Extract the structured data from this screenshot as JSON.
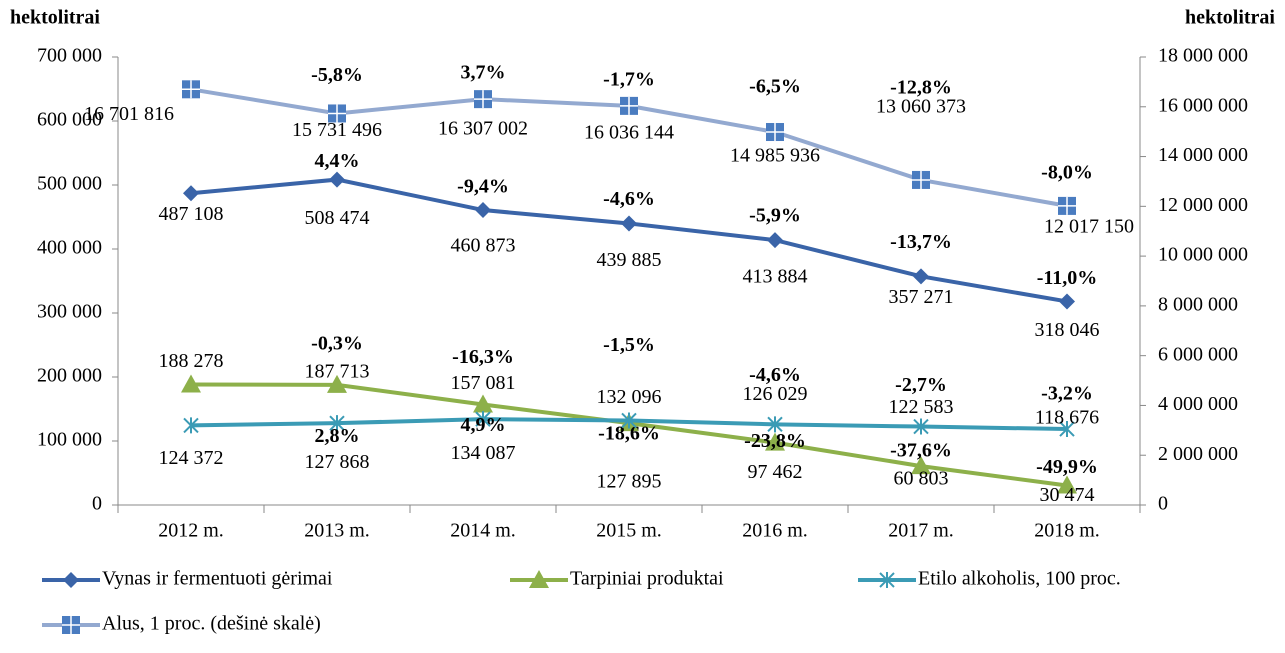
{
  "chart_data": {
    "type": "line",
    "y_label": "hektolitrai",
    "y2_label": "hektolitrai",
    "categories": [
      "2012 m.",
      "2013 m.",
      "2014 m.",
      "2015 m.",
      "2016 m.",
      "2017 m.",
      "2018 m."
    ],
    "series": [
      {
        "name": "Vynas ir fermentuoti gėrimai",
        "color": "#3a64a8",
        "marker": "diamond",
        "values": [
          487108,
          508474,
          460873,
          439885,
          413884,
          357271,
          318046
        ],
        "value_labels": [
          "487 108",
          "508 474",
          "460 873",
          "439 885",
          "413 884",
          "357 271",
          "318 046"
        ],
        "changes": [
          null,
          "4,4%",
          "-9,4%",
          "-4,6%",
          "-5,9%",
          "-13,7%",
          "-11,0%"
        ]
      },
      {
        "name": "Tarpiniai produktai",
        "color": "#8db04a",
        "marker": "triangle",
        "values": [
          188278,
          187713,
          157081,
          127895,
          97462,
          60803,
          30474
        ],
        "value_labels": [
          "188 278",
          "187 713",
          "157 081",
          "127 895",
          "97 462",
          "60 803",
          "30 474"
        ],
        "changes": [
          null,
          "-0,3%",
          "-16,3%",
          "-18,6%",
          "-23,8%",
          "-37,6%",
          "-49,9%"
        ]
      },
      {
        "name": "Etilo alkoholis, 100 proc.",
        "color": "#3b9bb5",
        "marker": "asterisk",
        "values": [
          124372,
          127868,
          134087,
          132096,
          126029,
          122583,
          118676
        ],
        "value_labels": [
          "124 372",
          "127 868",
          "134 087",
          "132 096",
          "126 029",
          "122 583",
          "118 676"
        ],
        "changes": [
          null,
          "2,8%",
          "4,9%",
          "-1,5%",
          "-4,6%",
          "-2,7%",
          "-3,2%"
        ]
      },
      {
        "name": "Alus, 1 proc. (dešinė skalė)",
        "color": "#93a9d0",
        "marker": "square",
        "axis": "y2",
        "values": [
          16701816,
          15731496,
          16307002,
          16036144,
          14985936,
          13060373,
          12017150
        ],
        "value_labels": [
          "16 701 816",
          "15 731 496",
          "16 307 002",
          "16 036 144",
          "14 985 936",
          "13 060 373",
          "12 017 150"
        ],
        "changes": [
          null,
          "-5,8%",
          "3,7%",
          "-1,7%",
          "-6,5%",
          "-12,8%",
          "-8,0%"
        ]
      }
    ],
    "ylim": [
      0,
      700000
    ],
    "yticks": [
      0,
      {
        "value": 100000,
        "label": "100 000"
      },
      {
        "value": 200000,
        "label": "200 000"
      },
      {
        "value": 300000,
        "label": "300 000"
      },
      {
        "value": 400000,
        "label": "400 000"
      },
      {
        "value": 500000,
        "label": "500 000"
      },
      {
        "value": 600000,
        "label": "600 000"
      },
      {
        "value": 700000,
        "label": "700 000"
      }
    ],
    "y2lim": [
      0,
      18000000
    ],
    "y2ticks": [
      0,
      {
        "value": 2000000,
        "label": "2 000 000"
      },
      {
        "value": 4000000,
        "label": "4 000 000"
      },
      {
        "value": 6000000,
        "label": "6 000 000"
      },
      {
        "value": 8000000,
        "label": "8 000 000"
      },
      {
        "value": 10000000,
        "label": "10 000 000"
      },
      {
        "value": 12000000,
        "label": "12 000 000"
      },
      {
        "value": 14000000,
        "label": "14 000 000"
      },
      {
        "value": 16000000,
        "label": "16 000 000"
      },
      {
        "value": 18000000,
        "label": "18 000 000"
      }
    ],
    "grid": false,
    "legend": "bottom"
  }
}
